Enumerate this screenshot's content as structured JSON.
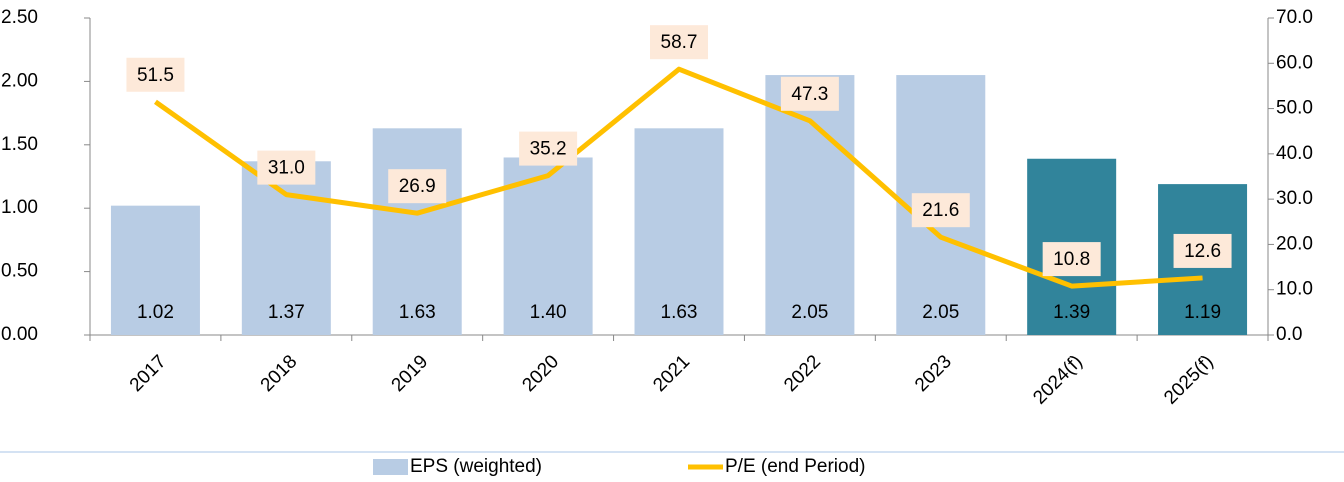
{
  "chart_data": {
    "type": "bar",
    "categories": [
      "2017",
      "2018",
      "2019",
      "2020",
      "2021",
      "2022",
      "2023",
      "2024(f)",
      "2025(f)"
    ],
    "series": [
      {
        "name": "EPS (weighted)",
        "type": "bar",
        "color": "#b8cce4",
        "colors": [
          "#b8cce4",
          "#b8cce4",
          "#b8cce4",
          "#b8cce4",
          "#b8cce4",
          "#b8cce4",
          "#b8cce4",
          "#31849b",
          "#31849b"
        ],
        "values": [
          1.02,
          1.37,
          1.63,
          1.4,
          1.63,
          2.05,
          2.05,
          1.39,
          1.19
        ],
        "value_labels": [
          "1.02",
          "1.37",
          "1.63",
          "1.40",
          "1.63",
          "2.05",
          "2.05",
          "1.39",
          "1.19"
        ]
      },
      {
        "name": "P/E (end Period)",
        "type": "line",
        "axis": "y2",
        "color": "#ffc000",
        "values": [
          51.5,
          31.0,
          26.9,
          35.2,
          58.7,
          47.3,
          21.6,
          10.8,
          12.6
        ],
        "value_labels": [
          "51.5",
          "31.0",
          "26.9",
          "35.2",
          "58.7",
          "47.3",
          "21.6",
          "10.8",
          "12.6"
        ]
      }
    ],
    "ylim": [
      0,
      2.5
    ],
    "yticks": [
      {
        "value": 0,
        "label": "0.00"
      },
      {
        "value": 0.5,
        "label": "0.50"
      },
      {
        "value": 1,
        "label": "1.00"
      },
      {
        "value": 1.5,
        "label": "1.50"
      },
      {
        "value": 2,
        "label": "2.00"
      },
      {
        "value": 2.5,
        "label": "2.50"
      }
    ],
    "y2lim": [
      0,
      70
    ],
    "y2ticks": [
      {
        "value": 0,
        "label": "0.0"
      },
      {
        "value": 10,
        "label": "10.0"
      },
      {
        "value": 20,
        "label": "20.0"
      },
      {
        "value": 30,
        "label": "30.0"
      },
      {
        "value": 40,
        "label": "40.0"
      },
      {
        "value": 50,
        "label": "50.0"
      },
      {
        "value": 60,
        "label": "60.0"
      },
      {
        "value": 70,
        "label": "70.0"
      }
    ]
  }
}
